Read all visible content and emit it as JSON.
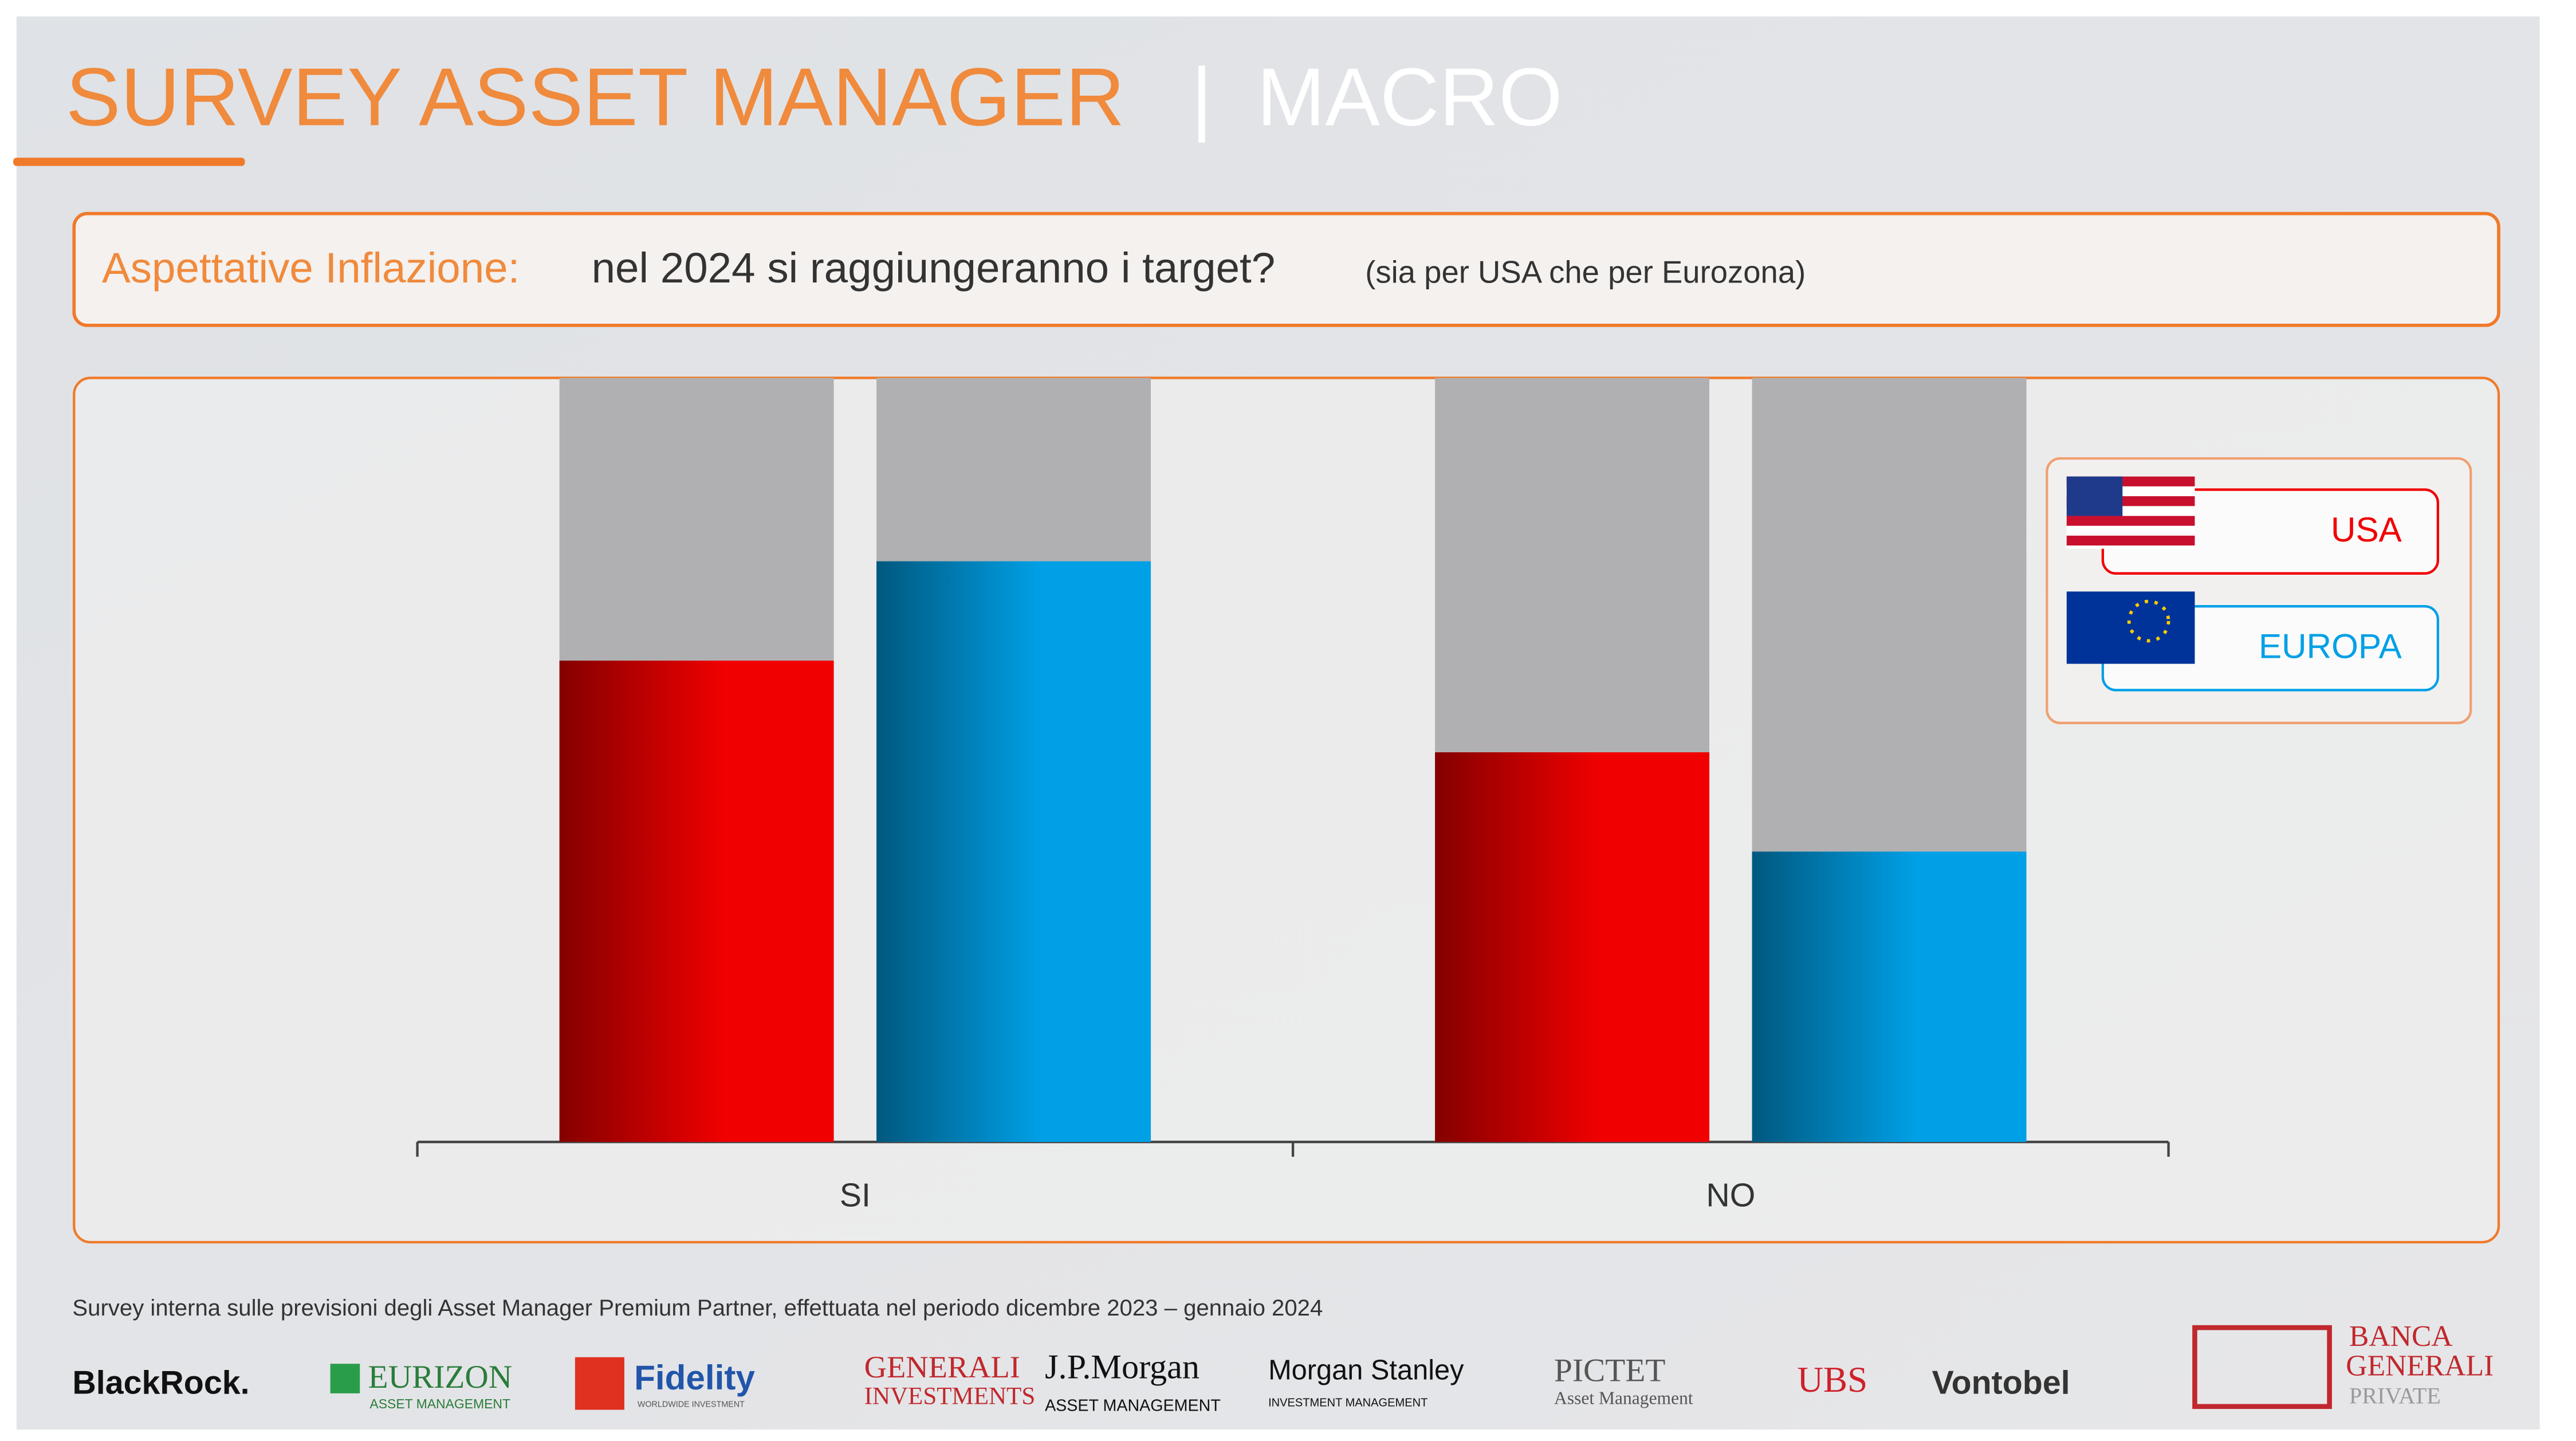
{
  "header": {
    "title": "SURVEY ASSET MANAGER",
    "separator": "|",
    "section": "MACRO"
  },
  "question": {
    "topic": "Aspettative Inflazione:",
    "text": "nel 2024 si raggiungeranno i target?",
    "note": "(sia per USA che per Eurozona)"
  },
  "chart_data": {
    "type": "bar",
    "categories": [
      "SI",
      "NO"
    ],
    "series": [
      {
        "name": "USA",
        "color": "#f00000",
        "values": [
          63,
          51
        ]
      },
      {
        "name": "EUROPA",
        "color": "#00a0e6",
        "values": [
          76,
          38
        ]
      }
    ],
    "ylim": [
      0,
      100
    ]
  },
  "footnote": "Survey interna sulle previsioni degli Asset Manager Premium Partner, effettuata nel periodo dicembre 2023 – gennaio 2024",
  "logos": [
    "BlackRock.",
    "EURIZON",
    "ASSET MANAGEMENT",
    "Fidelity",
    "WORLDWIDE INVESTMENT",
    "GENERALI",
    "INVESTMENTS",
    "J.P.Morgan",
    "ASSET MANAGEMENT",
    "Morgan Stanley",
    "INVESTMENT MANAGEMENT",
    "PICTET",
    "Asset Management",
    "UBS",
    "Vontobel",
    "BANCA",
    "GENERALI",
    "PRIVATE"
  ]
}
